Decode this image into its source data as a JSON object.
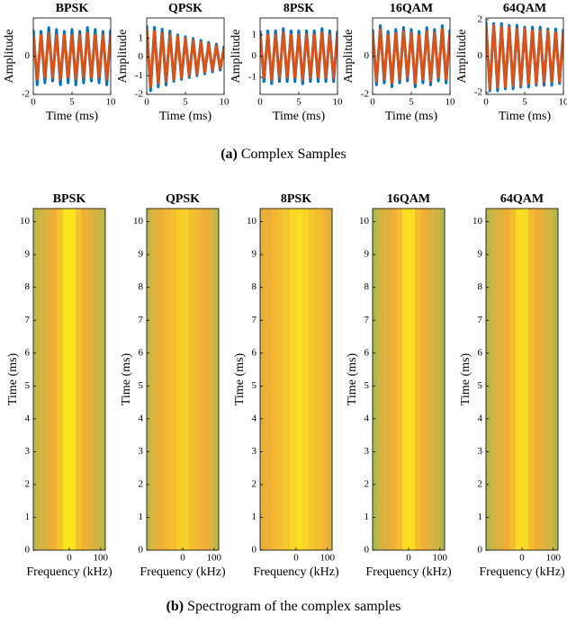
{
  "figure": {
    "captions": [
      {
        "label": "(a)",
        "text": "Complex Samples"
      },
      {
        "label": "(b)",
        "text": "Spectrogram of the complex samples"
      }
    ]
  },
  "chart_data": [
    {
      "type": "line",
      "title": "BPSK",
      "xlabel": "Time (ms)",
      "ylabel": "Amplitude",
      "xlim": [
        0,
        10
      ],
      "xticks": [
        0,
        5,
        10
      ],
      "ylim": [
        -2,
        2
      ],
      "yticks": [
        -2,
        0
      ],
      "x": [
        0,
        0.5,
        1,
        1.5,
        2,
        2.5,
        3,
        3.5,
        4,
        4.5,
        5,
        5.5,
        6,
        6.5,
        7,
        7.5,
        8,
        8.5,
        9,
        9.5,
        10
      ],
      "series": [
        {
          "color": "#0072bd",
          "values": [
            1.4,
            -1.5,
            1.3,
            -1.4,
            1.5,
            -1.3,
            1.4,
            -1.5,
            1.3,
            -1.4,
            1.4,
            -1.5,
            1.3,
            -1.4,
            1.5,
            -1.3,
            1.4,
            -1.4,
            1.3,
            -1.5,
            1.4
          ]
        },
        {
          "color": "#d95319",
          "values": [
            1.1,
            -1.2,
            1.1,
            -1.1,
            1.2,
            -1.1,
            1.1,
            -1.2,
            1.1,
            -1.1,
            1.1,
            -1.2,
            1.1,
            -1.1,
            1.2,
            -1.1,
            1.1,
            -1.1,
            1.1,
            -1.2,
            1.1
          ]
        }
      ]
    },
    {
      "type": "line",
      "title": "QPSK",
      "xlabel": "Time (ms)",
      "ylabel": "Amplitude",
      "xlim": [
        0,
        10
      ],
      "xticks": [
        0,
        5,
        10
      ],
      "ylim": [
        -2,
        2.1
      ],
      "yticks": [
        -2,
        -1,
        0,
        1
      ],
      "x": [
        0,
        0.5,
        1,
        1.5,
        2,
        2.5,
        3,
        3.5,
        4,
        4.5,
        5,
        5.5,
        6,
        6.5,
        7,
        7.5,
        8,
        8.5,
        9,
        9.5,
        10
      ],
      "series": [
        {
          "color": "#0072bd",
          "values": [
            1.7,
            -1.8,
            1.6,
            -1.6,
            1.5,
            -1.5,
            1.4,
            -1.3,
            1.2,
            -1.2,
            1.1,
            -1.1,
            1.0,
            -1.0,
            0.9,
            -0.9,
            0.8,
            -0.8,
            0.7,
            -0.7,
            0.6
          ]
        },
        {
          "color": "#d95319",
          "values": [
            1.5,
            -1.6,
            1.4,
            -1.4,
            1.3,
            -1.3,
            1.2,
            -1.2,
            1.1,
            -1.1,
            1.0,
            -1.0,
            0.9,
            -0.9,
            0.8,
            -0.8,
            0.7,
            -0.7,
            0.6,
            -0.6,
            0.5
          ]
        }
      ]
    },
    {
      "type": "line",
      "title": "8PSK",
      "xlabel": "Time (ms)",
      "ylabel": "Amplitude",
      "xlim": [
        0,
        10
      ],
      "xticks": [
        0,
        5,
        10
      ],
      "ylim": [
        -1.8,
        1.8
      ],
      "yticks": [
        -1,
        0,
        1
      ],
      "x": [
        0,
        0.5,
        1,
        1.5,
        2,
        2.5,
        3,
        3.5,
        4,
        4.5,
        5,
        5.5,
        6,
        6.5,
        7,
        7.5,
        8,
        8.5,
        9,
        9.5,
        10
      ],
      "series": [
        {
          "color": "#0072bd",
          "values": [
            1.2,
            -1.2,
            1.2,
            -1.3,
            1.2,
            -1.2,
            1.3,
            -1.2,
            1.2,
            -1.2,
            1.2,
            -1.3,
            1.2,
            -1.2,
            1.2,
            -1.2,
            1.3,
            -1.2,
            1.2,
            -1.2,
            1.2
          ]
        },
        {
          "color": "#d95319",
          "values": [
            1.0,
            -1.0,
            1.0,
            -1.1,
            1.0,
            -1.0,
            1.1,
            -1.0,
            1.0,
            -1.0,
            1.0,
            -1.1,
            1.0,
            -1.0,
            1.0,
            -1.0,
            1.1,
            -1.0,
            1.0,
            -1.0,
            1.0
          ]
        }
      ]
    },
    {
      "type": "line",
      "title": "16QAM",
      "xlabel": "Time (ms)",
      "ylabel": "Amplitude",
      "xlim": [
        0,
        10
      ],
      "xticks": [
        0,
        5,
        10
      ],
      "ylim": [
        -2,
        2
      ],
      "yticks": [
        -2,
        0
      ],
      "x": [
        0,
        0.5,
        1,
        1.5,
        2,
        2.5,
        3,
        3.5,
        4,
        4.5,
        5,
        5.5,
        6,
        6.5,
        7,
        7.5,
        8,
        8.5,
        9,
        9.5,
        10
      ],
      "series": [
        {
          "color": "#0072bd",
          "values": [
            1.4,
            -1.5,
            1.6,
            -1.4,
            1.3,
            -1.6,
            1.4,
            -1.4,
            1.5,
            -1.3,
            1.4,
            -1.6,
            1.3,
            -1.4,
            1.5,
            -1.5,
            1.4,
            -1.3,
            1.6,
            -1.4,
            1.4
          ]
        },
        {
          "color": "#d95319",
          "values": [
            1.2,
            -1.3,
            1.4,
            -1.2,
            1.1,
            -1.4,
            1.2,
            -1.2,
            1.3,
            -1.1,
            1.2,
            -1.4,
            1.1,
            -1.2,
            1.3,
            -1.3,
            1.2,
            -1.1,
            1.4,
            -1.2,
            1.2
          ]
        }
      ]
    },
    {
      "type": "line",
      "title": "64QAM",
      "xlabel": "Time (ms)",
      "ylabel": "Amplitude",
      "xlim": [
        0,
        10
      ],
      "xticks": [
        0,
        5,
        10
      ],
      "ylim": [
        -2.1,
        2.1
      ],
      "yticks": [
        -2,
        0,
        2
      ],
      "x": [
        0,
        0.5,
        1,
        1.5,
        2,
        2.5,
        3,
        3.5,
        4,
        4.5,
        5,
        5.5,
        6,
        6.5,
        7,
        7.5,
        8,
        8.5,
        9,
        9.5,
        10
      ],
      "series": [
        {
          "color": "#0072bd",
          "values": [
            1.9,
            -1.9,
            1.8,
            -1.9,
            1.8,
            -1.8,
            1.7,
            -1.8,
            1.7,
            -1.7,
            1.6,
            -1.7,
            1.6,
            -1.6,
            1.6,
            -1.6,
            1.5,
            -1.6,
            1.5,
            -1.5,
            1.5
          ]
        },
        {
          "color": "#d95319",
          "values": [
            1.7,
            -1.8,
            1.7,
            -1.7,
            1.6,
            -1.7,
            1.6,
            -1.6,
            1.5,
            -1.6,
            1.5,
            -1.5,
            1.4,
            -1.5,
            1.4,
            -1.4,
            1.4,
            -1.4,
            1.3,
            -1.4,
            1.3
          ]
        }
      ]
    },
    {
      "type": "spectrogram",
      "title": "BPSK",
      "xlabel": "Frequency (kHz)",
      "ylabel": "Time (ms)",
      "xlim": [
        -115,
        115
      ],
      "xticks": [
        0,
        100
      ],
      "ylim": [
        0,
        10.4
      ],
      "yticks": [
        0,
        1,
        2,
        3,
        4,
        5,
        6,
        7,
        8,
        9,
        10
      ],
      "x": [
        -110,
        -90,
        -70,
        -50,
        -30,
        -10,
        10,
        30,
        50,
        70,
        90,
        110
      ],
      "values": [
        0.45,
        0.5,
        0.55,
        0.6,
        0.72,
        1,
        1,
        0.72,
        0.6,
        0.55,
        0.5,
        0.45
      ]
    },
    {
      "type": "spectrogram",
      "title": "QPSK",
      "xlabel": "Frequency (kHz)",
      "ylabel": "Time (ms)",
      "xlim": [
        -115,
        115
      ],
      "xticks": [
        0,
        100
      ],
      "ylim": [
        0,
        10.4
      ],
      "yticks": [
        0,
        1,
        2,
        3,
        4,
        5,
        6,
        7,
        8,
        9,
        10
      ],
      "x": [
        -110,
        -90,
        -70,
        -50,
        -30,
        -10,
        10,
        30,
        50,
        70,
        90,
        110
      ],
      "values": [
        0.45,
        0.55,
        0.6,
        0.65,
        0.7,
        0.8,
        0.8,
        0.7,
        0.65,
        0.6,
        0.55,
        0.45
      ]
    },
    {
      "type": "spectrogram",
      "title": "8PSK",
      "xlabel": "Frequency (kHz)",
      "ylabel": "Time (ms)",
      "xlim": [
        -115,
        115
      ],
      "xticks": [
        0,
        100
      ],
      "ylim": [
        0,
        10.4
      ],
      "yticks": [
        0,
        1,
        2,
        3,
        4,
        5,
        6,
        7,
        8,
        9,
        10
      ],
      "x": [
        -110,
        -90,
        -70,
        -50,
        -30,
        -10,
        10,
        30,
        50,
        70,
        90,
        110
      ],
      "values": [
        0.55,
        0.6,
        0.65,
        0.7,
        0.75,
        0.85,
        0.9,
        0.85,
        0.75,
        0.7,
        0.62,
        0.55
      ]
    },
    {
      "type": "spectrogram",
      "title": "16QAM",
      "xlabel": "Frequency (kHz)",
      "ylabel": "Time (ms)",
      "xlim": [
        -115,
        115
      ],
      "xticks": [
        0,
        100
      ],
      "ylim": [
        0,
        10.4
      ],
      "yticks": [
        0,
        1,
        2,
        3,
        4,
        5,
        6,
        7,
        8,
        9,
        10
      ],
      "x": [
        -110,
        -90,
        -70,
        -50,
        -30,
        -10,
        10,
        30,
        50,
        70,
        90,
        110
      ],
      "values": [
        0.4,
        0.5,
        0.55,
        0.6,
        0.68,
        0.9,
        0.9,
        0.68,
        0.6,
        0.55,
        0.5,
        0.4
      ]
    },
    {
      "type": "spectrogram",
      "title": "64QAM",
      "xlabel": "Frequency (kHz)",
      "ylabel": "Time (ms)",
      "xlim": [
        -115,
        115
      ],
      "xticks": [
        0,
        100
      ],
      "ylim": [
        0,
        10.4
      ],
      "yticks": [
        0,
        1,
        2,
        3,
        4,
        5,
        6,
        7,
        8,
        9,
        10
      ],
      "x": [
        -110,
        -90,
        -70,
        -50,
        -30,
        -10,
        10,
        30,
        50,
        70,
        90,
        110
      ],
      "values": [
        0.42,
        0.5,
        0.55,
        0.6,
        0.68,
        0.88,
        0.88,
        0.68,
        0.6,
        0.55,
        0.5,
        0.42
      ]
    }
  ]
}
